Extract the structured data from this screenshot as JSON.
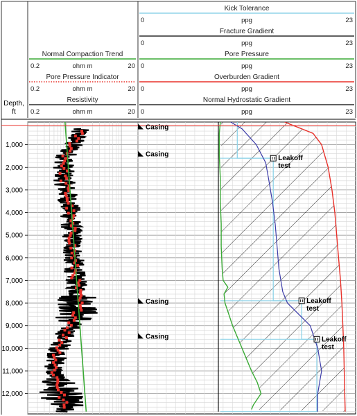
{
  "header": {
    "depth_label_line1": "Depth,",
    "depth_label_line2": "ft",
    "left_tracks": [
      {
        "title": "Normal Compaction Trend",
        "min": "0.2",
        "unit": "ohm m",
        "max": "20",
        "color": "#3aaa35",
        "style": "solid"
      },
      {
        "title": "Pore Pressure Indicator",
        "min": "0.2",
        "unit": "ohm m",
        "max": "20",
        "color": "#e8312a",
        "style": "dotted"
      },
      {
        "title": "Resistivity",
        "min": "0.2",
        "unit": "ohm m",
        "max": "20",
        "color": "#000000",
        "style": "solid"
      }
    ],
    "right_tracks": [
      {
        "title": "Kick Tolerance",
        "min": "0",
        "unit": "ppg",
        "max": "23",
        "color": "#8fd3e8"
      },
      {
        "title": "Fracture Gradient",
        "min": "0",
        "unit": "ppg",
        "max": "23",
        "color": "#000000"
      },
      {
        "title": "Pore Pressure",
        "min": "0",
        "unit": "ppg",
        "max": "23",
        "color": "#3aaa35"
      },
      {
        "title": "Overburden Gradient",
        "min": "0",
        "unit": "ppg",
        "max": "23",
        "color": "#e8312a"
      },
      {
        "title": "Normal Hydrostatic Gradient",
        "min": "0",
        "unit": "ppg",
        "max": "23",
        "color": "#000000"
      }
    ]
  },
  "chart_data": {
    "type": "line",
    "depth_axis": {
      "ylim": [
        0,
        12900
      ],
      "ticks": [
        "1,000",
        "2,000",
        "3,000",
        "4,000",
        "5,000",
        "6,000",
        "7,000",
        "8,000",
        "9,000",
        "10,000",
        "11,000",
        "12,000"
      ],
      "tick_values": [
        1000,
        2000,
        3000,
        4000,
        5000,
        6000,
        7000,
        8000,
        9000,
        10000,
        11000,
        12000
      ]
    },
    "resistivity_track": {
      "scale": "log",
      "xlim": [
        0.2,
        20
      ],
      "normal_compaction_trend": {
        "depth": [
          0,
          12800
        ],
        "ohm_m": [
          0.95,
          2.3
        ]
      },
      "resistivity_center": {
        "depth": [
          0,
          500,
          1000,
          1500,
          2000,
          2500,
          3000,
          3500,
          4000,
          4500,
          5000,
          5500,
          6000,
          6500,
          7000,
          7500,
          8000,
          8500,
          9000,
          9500,
          10000,
          10500,
          11000,
          11500,
          12000,
          12500
        ],
        "ohm_m": [
          1.5,
          1.7,
          1.3,
          1.0,
          0.9,
          0.9,
          1.0,
          1.1,
          1.2,
          1.2,
          1.3,
          1.3,
          1.35,
          1.4,
          1.5,
          1.6,
          1.7,
          1.6,
          1.2,
          0.9,
          0.75,
          0.65,
          0.6,
          0.7,
          0.8,
          0.9
        ]
      }
    },
    "pressure_track": {
      "xlim": [
        0,
        23
      ],
      "unit": "ppg",
      "pore_pressure": {
        "depth": [
          0,
          500,
          1000,
          1500,
          2500,
          3500,
          4500,
          5500,
          6500,
          7000,
          7300,
          7600,
          8000,
          8500,
          9000,
          9500,
          10000,
          10500,
          11000,
          11500,
          12000,
          12500,
          12700
        ],
        "ppg": [
          8.7,
          8.6,
          8.6,
          8.6,
          8.7,
          8.7,
          8.8,
          8.8,
          8.9,
          9.0,
          9.5,
          9.1,
          9.2,
          9.6,
          10.0,
          10.5,
          11.0,
          11.5,
          12.0,
          12.6,
          13.0,
          12.2,
          12.0
        ]
      },
      "normal_hydrostatic_gradient": {
        "depth": [
          0,
          12800
        ],
        "ppg": [
          8.5,
          8.5
        ]
      },
      "fracture_gradient": {
        "depth": [
          0,
          300,
          1000,
          1800,
          2500,
          3500,
          4500,
          5500,
          6500,
          7500,
          8000,
          8500,
          9000,
          9500,
          10000,
          10500,
          11000,
          11500,
          12000,
          12500,
          12800
        ],
        "ppg": [
          9.8,
          11.0,
          12.5,
          13.5,
          13.8,
          14.2,
          14.5,
          14.7,
          14.9,
          15.3,
          15.8,
          17.0,
          18.2,
          18.6,
          19.0,
          19.2,
          19.4,
          19.2,
          19.0,
          19.0,
          19.0
        ]
      },
      "overburden_gradient": {
        "depth": [
          0,
          500,
          1000,
          2000,
          3000,
          4000,
          5000,
          6000,
          7000,
          8000,
          9000,
          10000,
          11000,
          12000,
          12800
        ],
        "ppg": [
          15.5,
          18.5,
          19.4,
          20.1,
          20.5,
          20.8,
          21.0,
          21.2,
          21.4,
          21.55,
          21.65,
          21.75,
          21.8,
          21.85,
          21.9
        ]
      },
      "kick_tolerance_casing_strings": [
        {
          "top": 0,
          "bottom": 1600,
          "ppg": 10.5
        },
        {
          "top": 1600,
          "bottom": 7900,
          "ppg": 14.3
        },
        {
          "top": 7900,
          "bottom": 9600,
          "ppg": 17.3
        },
        {
          "top": 9600,
          "bottom": 12800,
          "ppg": 18.9
        }
      ]
    },
    "casing_points": [
      {
        "depth": 200,
        "label": "Casing"
      },
      {
        "depth": 1400,
        "label": "Casing"
      },
      {
        "depth": 7900,
        "label": "Casing"
      },
      {
        "depth": 9450,
        "label": "Casing"
      }
    ],
    "leakoff_tests": [
      {
        "depth": 1600,
        "ppg": 14.3,
        "label_line1": "Leakoff",
        "label_line2": "test"
      },
      {
        "depth": 7900,
        "ppg": 17.3,
        "label_line1": "Leakoff",
        "label_line2": "test"
      },
      {
        "depth": 9600,
        "ppg": 18.9,
        "label_line1": "Leakoff",
        "label_line2": "test"
      }
    ]
  }
}
